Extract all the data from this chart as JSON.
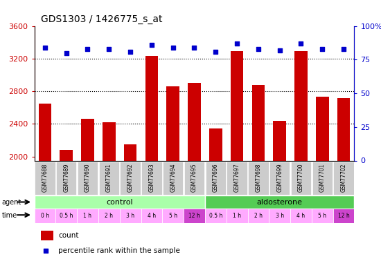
{
  "title": "GDS1303 / 1426775_s_at",
  "samples": [
    "GSM77688",
    "GSM77689",
    "GSM77690",
    "GSM77691",
    "GSM77692",
    "GSM77693",
    "GSM77694",
    "GSM77695",
    "GSM77696",
    "GSM77697",
    "GSM77698",
    "GSM77699",
    "GSM77700",
    "GSM77701",
    "GSM77702"
  ],
  "counts": [
    2650,
    2080,
    2460,
    2420,
    2150,
    3230,
    2860,
    2900,
    2340,
    3290,
    2880,
    2440,
    3290,
    2730,
    2720
  ],
  "percentiles": [
    84,
    80,
    83,
    83,
    81,
    86,
    84,
    84,
    81,
    87,
    83,
    82,
    87,
    83,
    83
  ],
  "ylim_left": [
    1950,
    3600
  ],
  "ylim_right": [
    0,
    100
  ],
  "yticks_left": [
    2000,
    2400,
    2800,
    3200,
    3600
  ],
  "yticks_right": [
    0,
    25,
    50,
    75,
    100
  ],
  "ytick_right_labels": [
    "0",
    "25",
    "50",
    "75",
    "100%"
  ],
  "bar_color": "#cc0000",
  "dot_color": "#0000cc",
  "grid_color": "#000000",
  "agent_row": {
    "control_count": 8,
    "aldosterone_count": 7,
    "control_color": "#aaffaa",
    "aldosterone_color": "#55cc55",
    "control_label": "control",
    "aldosterone_label": "aldosterone"
  },
  "time_labels": [
    "0 h",
    "0.5 h",
    "1 h",
    "2 h",
    "3 h",
    "4 h",
    "5 h",
    "12 h",
    "0.5 h",
    "1 h",
    "2 h",
    "3 h",
    "4 h",
    "5 h",
    "12 h"
  ],
  "time_colors": [
    "#ffaaff",
    "#ffaaff",
    "#ffaaff",
    "#ffaaff",
    "#ffaaff",
    "#ffaaff",
    "#ffaaff",
    "#cc44cc",
    "#ffaaff",
    "#ffaaff",
    "#ffaaff",
    "#ffaaff",
    "#ffaaff",
    "#ffaaff",
    "#cc44cc"
  ],
  "bg_color": "#ffffff",
  "sample_bg_color": "#cccccc",
  "left_label_color": "#cc0000",
  "right_label_color": "#0000cc",
  "legend_count_label": "count",
  "legend_pct_label": "percentile rank within the sample"
}
